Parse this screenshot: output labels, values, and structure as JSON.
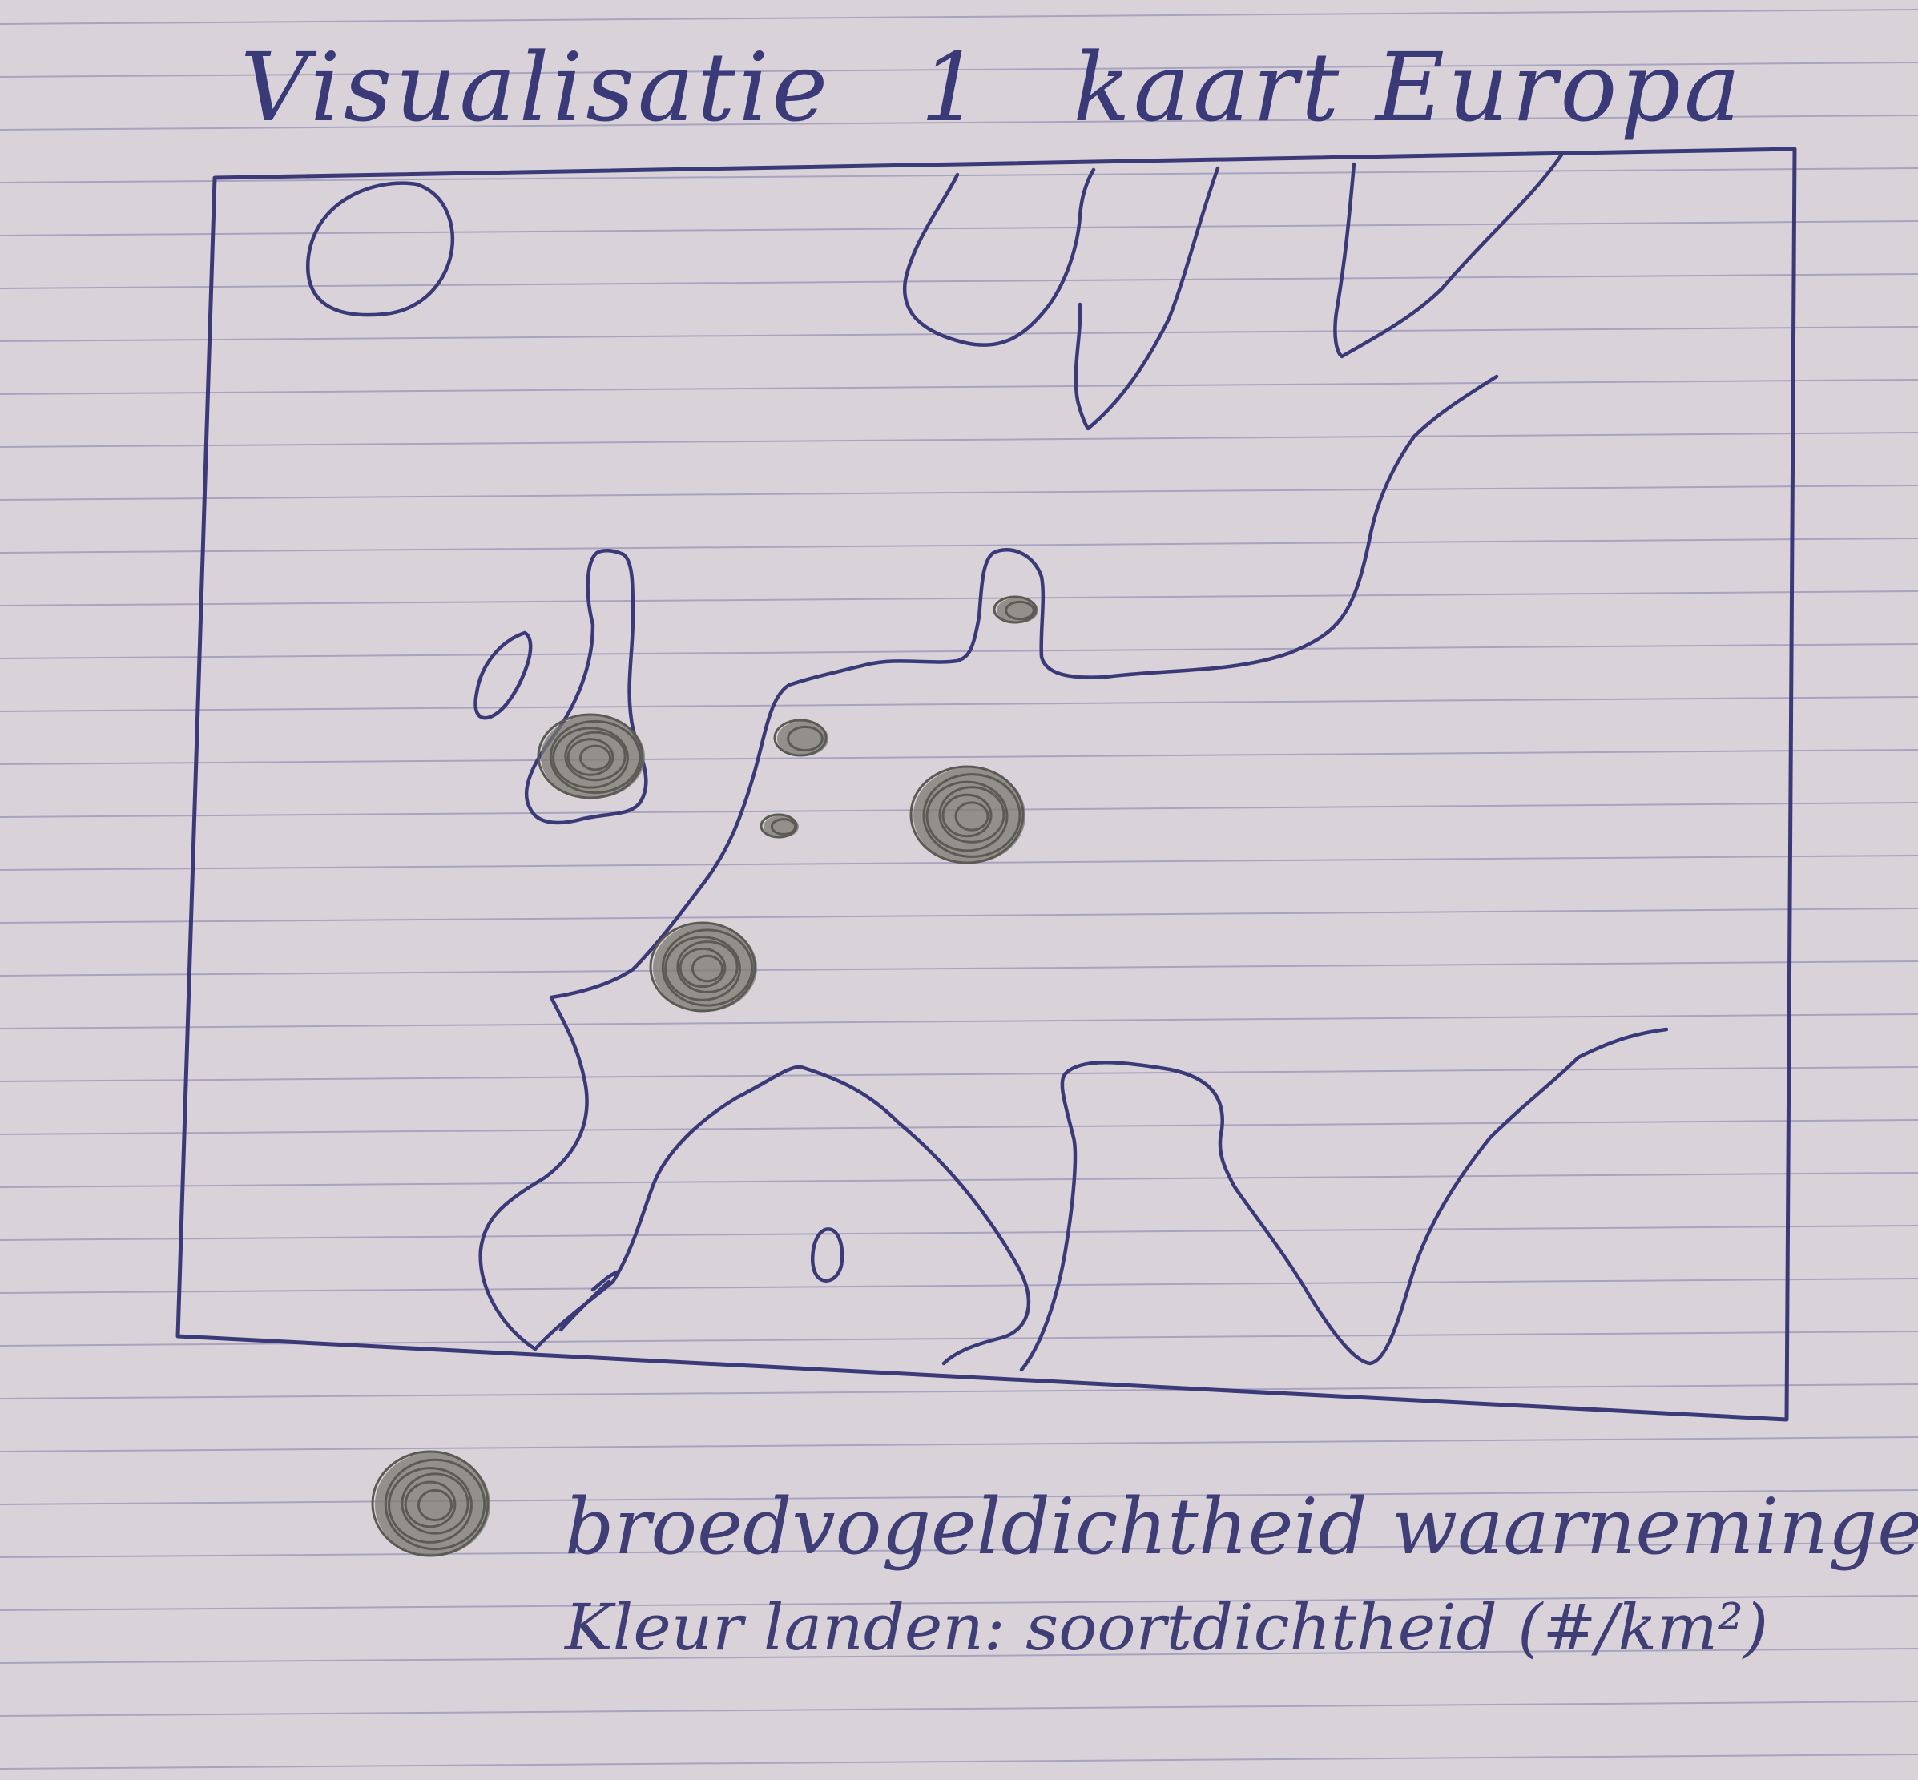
{
  "title": {
    "line_text": "Visualisatie",
    "number": "1",
    "subject": "kaart Europa"
  },
  "legend": {
    "marker_icon": "density-blob-icon",
    "marker_label": "broedvogeldichtheid waarnemingen.",
    "color_label": "Kleur landen: soortdichtheid (#/km²)"
  },
  "colors": {
    "paper": "#d9d3d9",
    "rule_line": "#a8a3bf",
    "ink": "#3b3a78",
    "pencil": "#5b5a55"
  },
  "density_markers": [
    {
      "name": "density-marker-ireland-north",
      "size": "large"
    },
    {
      "name": "density-marker-belgium",
      "size": "small"
    },
    {
      "name": "density-marker-north-france",
      "size": "small"
    },
    {
      "name": "density-marker-germany",
      "size": "large"
    },
    {
      "name": "density-marker-france",
      "size": "large"
    },
    {
      "name": "density-marker-denmark",
      "size": "small"
    }
  ]
}
